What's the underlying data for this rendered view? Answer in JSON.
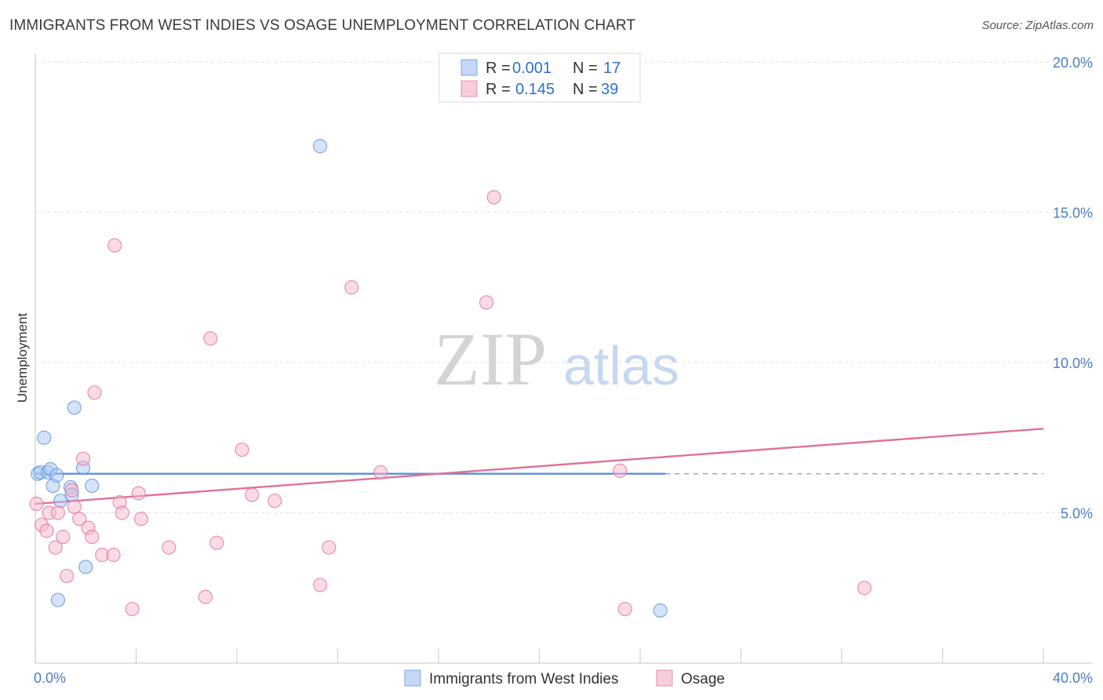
{
  "header": {
    "title": "IMMIGRANTS FROM WEST INDIES VS OSAGE UNEMPLOYMENT CORRELATION CHART",
    "source": "Source: ZipAtlas.com"
  },
  "watermark": {
    "part1": "ZIP",
    "part2": "atlas"
  },
  "legend": {
    "rows": [
      {
        "r_label": "R =",
        "r_value": "0.001",
        "n_label": "N =",
        "n_value": "17",
        "color": "#a9c8f2"
      },
      {
        "r_label": "R =",
        "r_value": "0.145",
        "n_label": "N =",
        "n_value": "39",
        "color": "#f5b8cb"
      }
    ]
  },
  "bottom_legend": [
    {
      "label": "Immigrants from West Indies",
      "color": "#a9c8f2"
    },
    {
      "label": "Osage",
      "color": "#f5b8cb"
    }
  ],
  "chart_data": {
    "type": "scatter",
    "title": "IMMIGRANTS FROM WEST INDIES VS OSAGE UNEMPLOYMENT CORRELATION CHART",
    "xlabel": "",
    "ylabel": "Unemployment",
    "xlim": [
      0,
      40
    ],
    "ylim": [
      0,
      20
    ],
    "x_tick_labels": [
      "0.0%",
      "40.0%"
    ],
    "y_ticks": [
      5,
      10,
      15,
      20
    ],
    "y_tick_labels": [
      "5.0%",
      "10.0%",
      "15.0%",
      "20.0%"
    ],
    "grid": true,
    "legend_position": "top-center",
    "series": [
      {
        "name": "Immigrants from West Indies",
        "color": "#5b8fd8",
        "fill": "#a9c8f2",
        "points": [
          [
            0.1,
            6.3
          ],
          [
            0.2,
            6.35
          ],
          [
            0.35,
            7.5
          ],
          [
            0.5,
            6.35
          ],
          [
            0.6,
            6.45
          ],
          [
            0.7,
            5.9
          ],
          [
            0.85,
            6.25
          ],
          [
            1.0,
            5.4
          ],
          [
            1.4,
            5.85
          ],
          [
            1.45,
            5.6
          ],
          [
            1.55,
            8.5
          ],
          [
            1.9,
            6.5
          ],
          [
            2.25,
            5.9
          ],
          [
            2.0,
            3.2
          ],
          [
            0.9,
            2.1
          ],
          [
            11.3,
            17.2
          ],
          [
            24.8,
            1.75
          ]
        ],
        "trend": {
          "x0": 0,
          "y0": 6.3,
          "x1": 25,
          "y1": 6.3,
          "dash_to_x": 40
        }
      },
      {
        "name": "Osage",
        "color": "#e0709a",
        "fill": "#f5b8cb",
        "points": [
          [
            0.05,
            5.3
          ],
          [
            0.25,
            4.6
          ],
          [
            0.45,
            4.4
          ],
          [
            0.55,
            5.0
          ],
          [
            0.8,
            3.85
          ],
          [
            0.9,
            5.0
          ],
          [
            1.1,
            4.2
          ],
          [
            1.25,
            2.9
          ],
          [
            1.45,
            5.75
          ],
          [
            1.55,
            5.2
          ],
          [
            1.75,
            4.8
          ],
          [
            1.9,
            6.8
          ],
          [
            2.1,
            4.5
          ],
          [
            2.25,
            4.2
          ],
          [
            2.35,
            9.0
          ],
          [
            2.65,
            3.6
          ],
          [
            3.1,
            3.6
          ],
          [
            3.15,
            13.9
          ],
          [
            3.35,
            5.35
          ],
          [
            3.45,
            5.0
          ],
          [
            3.85,
            1.8
          ],
          [
            4.1,
            5.65
          ],
          [
            4.2,
            4.8
          ],
          [
            5.3,
            3.85
          ],
          [
            6.75,
            2.2
          ],
          [
            6.95,
            10.8
          ],
          [
            7.2,
            4.0
          ],
          [
            8.2,
            7.1
          ],
          [
            8.6,
            5.6
          ],
          [
            9.5,
            5.4
          ],
          [
            11.3,
            2.6
          ],
          [
            11.65,
            3.85
          ],
          [
            12.55,
            12.5
          ],
          [
            13.7,
            6.35
          ],
          [
            17.9,
            12.0
          ],
          [
            18.2,
            15.5
          ],
          [
            23.2,
            6.4
          ],
          [
            23.4,
            1.8
          ],
          [
            32.9,
            2.5
          ]
        ],
        "trend": {
          "x0": 0,
          "y0": 5.3,
          "x1": 40,
          "y1": 7.8
        }
      }
    ]
  }
}
